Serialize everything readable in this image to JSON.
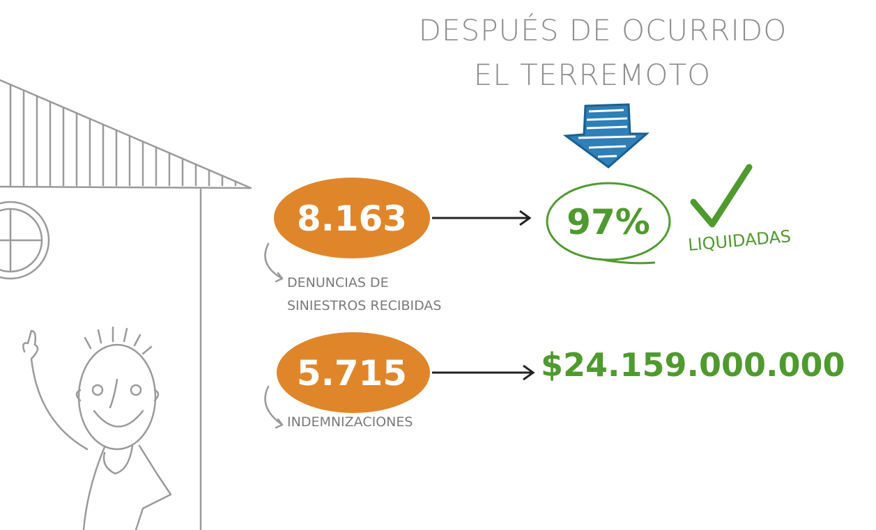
{
  "header": {
    "lines": [
      "DESPUÉS DE OCURRIDO",
      "EL TERREMOTO"
    ]
  },
  "stats": [
    {
      "value": "8.163",
      "label": [
        "DENUNCIAS DE",
        "SINIESTROS RECIBIDAS"
      ],
      "result": "97%",
      "note": "LIQUIDADAS"
    },
    {
      "value": "5.715",
      "label": [
        "INDEMNIZACIONES"
      ],
      "result": "$24.159.000.000"
    }
  ]
}
